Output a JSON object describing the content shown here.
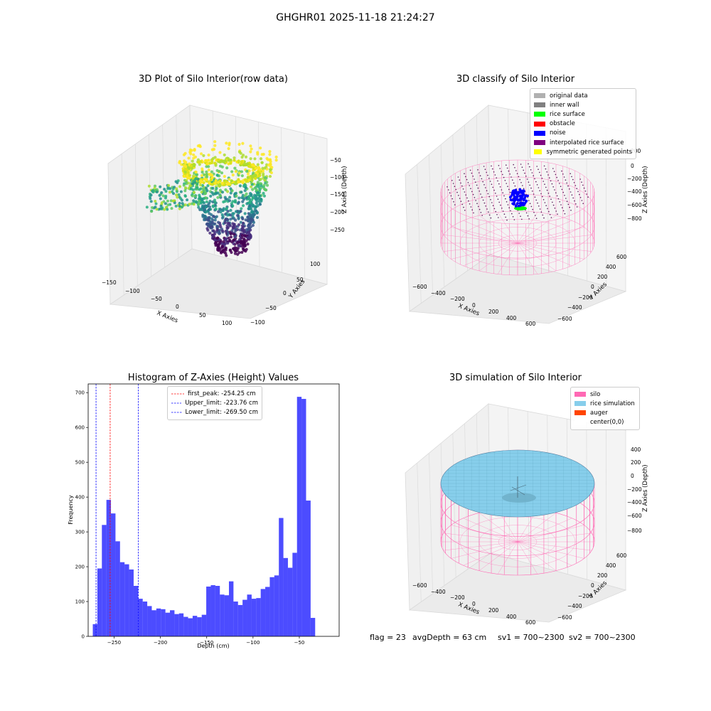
{
  "suptitle": "GHGHR01 2025-11-18 21:24:27",
  "panels": {
    "raw": {
      "title": "3D Plot of Silo Interior(row data)",
      "xlabel": "X Axies",
      "ylabel": "Y Axies",
      "zlabel": "Z Axies (Depth)",
      "xticks": [
        "−150",
        "−100",
        "−50",
        "0",
        "50",
        "100"
      ],
      "yticks": [
        "−100",
        "−50",
        "0",
        "50",
        "100"
      ],
      "zticks": [
        "−50",
        "−100",
        "−150",
        "−200",
        "−250"
      ]
    },
    "classify": {
      "title": "3D classify of Silo Interior",
      "xlabel": "X Axies",
      "ylabel": "Y Axies",
      "zlabel": "Z Axies (Depth)",
      "xticks": [
        "−600",
        "−400",
        "−200",
        "0",
        "200",
        "400",
        "600"
      ],
      "yticks": [
        "−600",
        "−400",
        "−200",
        "0",
        "200",
        "400",
        "600"
      ],
      "zticks": [
        "200",
        "0",
        "−200",
        "−400",
        "−600",
        "−800"
      ],
      "legend": [
        {
          "label": "original data",
          "color": "#b0b0b0"
        },
        {
          "label": "inner wall",
          "color": "#808080"
        },
        {
          "label": "rice surface",
          "color": "#00ff00"
        },
        {
          "label": "obstacle",
          "color": "#ff0000"
        },
        {
          "label": "noise",
          "color": "#0000ff"
        },
        {
          "label": "interpolated rice surface",
          "color": "#800080"
        },
        {
          "label": "symmetric generated points",
          "color": "#ffff00"
        }
      ]
    },
    "simulation": {
      "title": "3D simulation of Silo Interior",
      "xlabel": "X Axies",
      "ylabel": "Y Axies",
      "zlabel": "Z Axies (Depth)",
      "xticks": [
        "−600",
        "−400",
        "−200",
        "0",
        "200",
        "400",
        "600"
      ],
      "yticks": [
        "−600",
        "−400",
        "−200",
        "0",
        "200",
        "400",
        "600"
      ],
      "zticks": [
        "400",
        "200",
        "0",
        "−200",
        "−400",
        "−600",
        "−800"
      ],
      "legend": [
        {
          "label": "silo",
          "color": "#ff69b4"
        },
        {
          "label": "rice simulation",
          "color": "#87ceeb"
        },
        {
          "label": "auger",
          "color": "#ff4500"
        },
        {
          "label": "center(0,0)",
          "color": "#ffffff"
        }
      ]
    }
  },
  "status": {
    "flag": "flag = 23",
    "avg_depth": "avgDepth = 63 cm",
    "sv1": "sv1 = 700~2300",
    "sv2": "sv2 = 700~2300"
  },
  "chart_data": [
    {
      "type": "bar",
      "title": "Histogram of Z-Axies (Height) Values",
      "xlabel": "Depth (cm)",
      "ylabel": "Frequency",
      "bar_color": "#0000ff",
      "bin_start": -273,
      "bin_width": 4.9,
      "values": [
        35,
        195,
        320,
        392,
        353,
        273,
        213,
        207,
        192,
        145,
        108,
        100,
        87,
        75,
        80,
        78,
        68,
        75,
        64,
        66,
        56,
        52,
        59,
        55,
        62,
        143,
        147,
        145,
        120,
        118,
        158,
        100,
        90,
        105,
        120,
        108,
        110,
        136,
        142,
        170,
        175,
        340,
        225,
        197,
        240,
        688,
        682,
        390,
        53
      ],
      "xlim": [
        -278,
        -7
      ],
      "ylim": [
        0,
        725
      ],
      "xticks": [
        -250,
        -200,
        -150,
        -100,
        -50
      ],
      "yticks": [
        0,
        100,
        200,
        300,
        400,
        500,
        600,
        700
      ],
      "vlines": [
        {
          "label": "first_peak: -254.25 cm",
          "x": -254.25,
          "color": "#ff0000"
        },
        {
          "label": "Upper_limit: -223.76 cm",
          "x": -223.76,
          "color": "#0000ff"
        },
        {
          "label": "Lower_limit: -269.50 cm",
          "x": -269.5,
          "color": "#0000ff"
        }
      ],
      "legend_position": "top-center"
    }
  ]
}
